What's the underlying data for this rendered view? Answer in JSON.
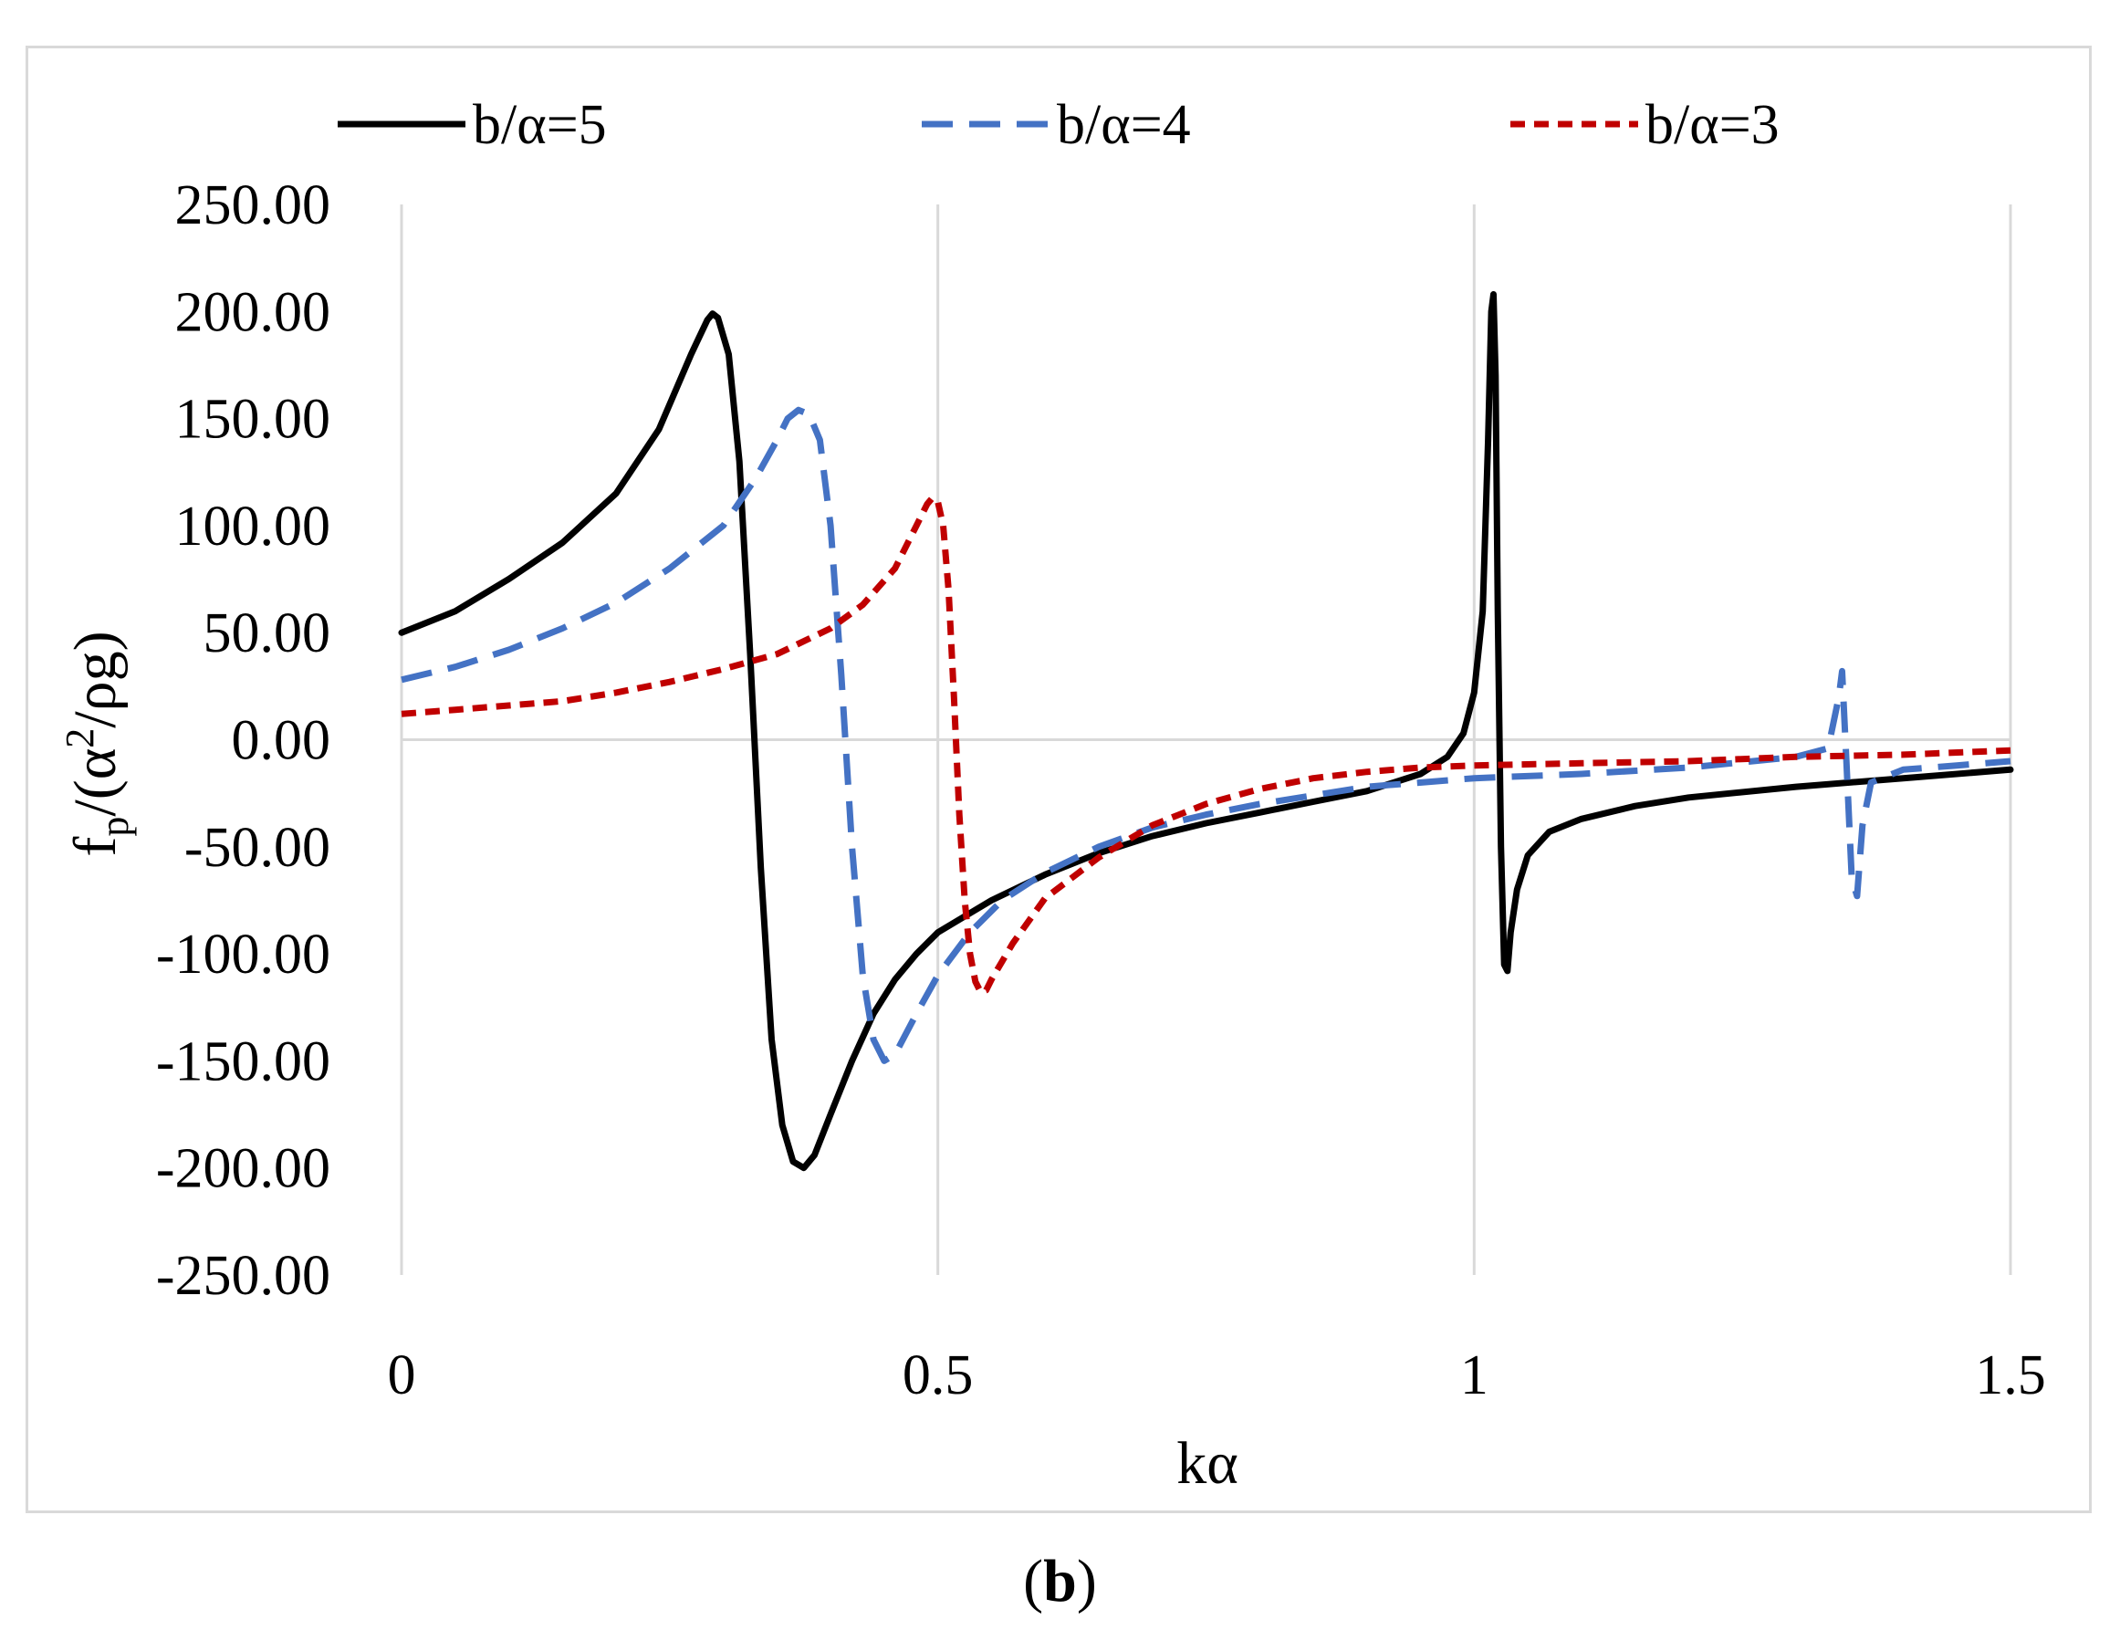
{
  "chart_data": {
    "type": "line",
    "title": "",
    "xlabel": "kα",
    "ylabel": "fp/(α²/ρg)",
    "ylabel_parts": {
      "f": "f",
      "sub": "p",
      "mid": "/(α",
      "sup": "2",
      "end": "/ρg)"
    },
    "xlim": [
      0,
      1.5
    ],
    "ylim": [
      -250,
      250
    ],
    "x_ticks": [
      0,
      0.5,
      1,
      1.5
    ],
    "x_tick_labels": [
      "0",
      "0.5",
      "1",
      "1.5"
    ],
    "y_ticks": [
      250,
      200,
      150,
      100,
      50,
      0,
      -50,
      -100,
      -150,
      -200,
      -250
    ],
    "y_tick_labels": [
      "250.00",
      "200.00",
      "150.00",
      "100.00",
      "50.00",
      "0.00",
      "-50.00",
      "-100.00",
      "-150.00",
      "-200.00",
      "-250.00"
    ],
    "grid": "vertical",
    "legend_position": "top",
    "series": [
      {
        "name": "b/α=5",
        "color": "#000000",
        "dash": "solid",
        "points": [
          [
            0,
            50
          ],
          [
            0.05,
            60
          ],
          [
            0.1,
            75
          ],
          [
            0.15,
            92
          ],
          [
            0.2,
            115
          ],
          [
            0.24,
            145
          ],
          [
            0.27,
            180
          ],
          [
            0.285,
            196
          ],
          [
            0.29,
            199
          ],
          [
            0.295,
            197
          ],
          [
            0.305,
            180
          ],
          [
            0.315,
            130
          ],
          [
            0.325,
            40
          ],
          [
            0.335,
            -60
          ],
          [
            0.345,
            -140
          ],
          [
            0.355,
            -180
          ],
          [
            0.365,
            -197
          ],
          [
            0.375,
            -200
          ],
          [
            0.385,
            -194
          ],
          [
            0.4,
            -175
          ],
          [
            0.42,
            -150
          ],
          [
            0.44,
            -128
          ],
          [
            0.46,
            -112
          ],
          [
            0.48,
            -100
          ],
          [
            0.5,
            -90
          ],
          [
            0.55,
            -75
          ],
          [
            0.6,
            -63
          ],
          [
            0.65,
            -53
          ],
          [
            0.7,
            -45
          ],
          [
            0.75,
            -39
          ],
          [
            0.8,
            -34
          ],
          [
            0.85,
            -29
          ],
          [
            0.9,
            -24
          ],
          [
            0.95,
            -16
          ],
          [
            0.975,
            -8
          ],
          [
            0.99,
            3
          ],
          [
            1.0,
            22
          ],
          [
            1.008,
            60
          ],
          [
            1.013,
            140
          ],
          [
            1.016,
            200
          ],
          [
            1.018,
            208
          ],
          [
            1.02,
            170
          ],
          [
            1.022,
            60
          ],
          [
            1.025,
            -50
          ],
          [
            1.028,
            -105
          ],
          [
            1.031,
            -108
          ],
          [
            1.034,
            -90
          ],
          [
            1.04,
            -70
          ],
          [
            1.05,
            -54
          ],
          [
            1.07,
            -43
          ],
          [
            1.1,
            -37
          ],
          [
            1.15,
            -31
          ],
          [
            1.2,
            -27
          ],
          [
            1.3,
            -22
          ],
          [
            1.4,
            -18
          ],
          [
            1.5,
            -14
          ]
        ]
      },
      {
        "name": "b/α=4",
        "color": "#4472c4",
        "dash": "dashed",
        "points": [
          [
            0,
            28
          ],
          [
            0.05,
            34
          ],
          [
            0.1,
            42
          ],
          [
            0.15,
            52
          ],
          [
            0.2,
            64
          ],
          [
            0.25,
            80
          ],
          [
            0.3,
            100
          ],
          [
            0.33,
            122
          ],
          [
            0.35,
            140
          ],
          [
            0.36,
            150
          ],
          [
            0.37,
            154
          ],
          [
            0.38,
            152
          ],
          [
            0.39,
            140
          ],
          [
            0.4,
            100
          ],
          [
            0.41,
            30
          ],
          [
            0.42,
            -50
          ],
          [
            0.43,
            -110
          ],
          [
            0.44,
            -140
          ],
          [
            0.45,
            -150
          ],
          [
            0.46,
            -147
          ],
          [
            0.48,
            -128
          ],
          [
            0.5,
            -110
          ],
          [
            0.53,
            -90
          ],
          [
            0.56,
            -75
          ],
          [
            0.6,
            -62
          ],
          [
            0.65,
            -50
          ],
          [
            0.7,
            -41
          ],
          [
            0.75,
            -35
          ],
          [
            0.8,
            -30
          ],
          [
            0.9,
            -22
          ],
          [
            1.0,
            -18
          ],
          [
            1.1,
            -16
          ],
          [
            1.2,
            -13
          ],
          [
            1.3,
            -8
          ],
          [
            1.33,
            -4
          ],
          [
            1.34,
            20
          ],
          [
            1.343,
            32
          ],
          [
            1.347,
            -10
          ],
          [
            1.352,
            -65
          ],
          [
            1.357,
            -73
          ],
          [
            1.362,
            -40
          ],
          [
            1.37,
            -20
          ],
          [
            1.4,
            -14
          ],
          [
            1.45,
            -12
          ],
          [
            1.5,
            -10
          ]
        ]
      },
      {
        "name": "b/α=3",
        "color": "#c00000",
        "dash": "dotted",
        "points": [
          [
            0,
            12
          ],
          [
            0.05,
            14
          ],
          [
            0.1,
            16
          ],
          [
            0.15,
            18
          ],
          [
            0.2,
            22
          ],
          [
            0.25,
            27
          ],
          [
            0.3,
            33
          ],
          [
            0.35,
            40
          ],
          [
            0.4,
            52
          ],
          [
            0.43,
            63
          ],
          [
            0.46,
            80
          ],
          [
            0.48,
            100
          ],
          [
            0.49,
            110
          ],
          [
            0.495,
            113
          ],
          [
            0.5,
            111
          ],
          [
            0.505,
            100
          ],
          [
            0.51,
            70
          ],
          [
            0.515,
            20
          ],
          [
            0.52,
            -35
          ],
          [
            0.525,
            -75
          ],
          [
            0.53,
            -100
          ],
          [
            0.535,
            -113
          ],
          [
            0.54,
            -118
          ],
          [
            0.545,
            -117
          ],
          [
            0.55,
            -112
          ],
          [
            0.57,
            -95
          ],
          [
            0.6,
            -74
          ],
          [
            0.65,
            -55
          ],
          [
            0.7,
            -40
          ],
          [
            0.75,
            -30
          ],
          [
            0.8,
            -23
          ],
          [
            0.85,
            -18
          ],
          [
            0.9,
            -15
          ],
          [
            0.95,
            -13
          ],
          [
            1.0,
            -12
          ],
          [
            1.1,
            -11
          ],
          [
            1.2,
            -10
          ],
          [
            1.3,
            -8
          ],
          [
            1.4,
            -7
          ],
          [
            1.5,
            -5
          ]
        ]
      }
    ]
  },
  "caption": {
    "open": "(",
    "letter": "b",
    "close": ")"
  }
}
